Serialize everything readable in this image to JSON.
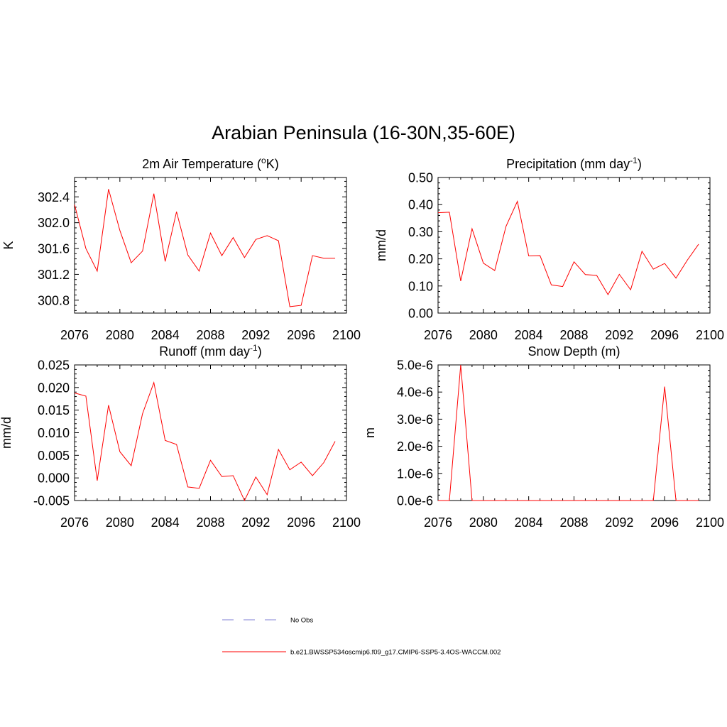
{
  "title": "Arabian Peninsula (16-30N,35-60E)",
  "colors": {
    "model": "#ff0000",
    "obs": "#9999dd",
    "axis": "#000000"
  },
  "legend": [
    {
      "label": "No Obs",
      "style": "dashed",
      "color": "#9999dd"
    },
    {
      "label": "b.e21.BWSSP534oscmip6.f09_g17.CMIP6-SSP5-3.4OS-WACCM.002",
      "style": "solid",
      "color": "#ff0000"
    }
  ],
  "chart_data": [
    {
      "type": "line",
      "title_main": "2m Air Temperature (",
      "title_sup": "o",
      "title_after": "K)",
      "ylabel": "K",
      "xlim": [
        2076,
        2100
      ],
      "ylim": [
        300.6,
        302.7
      ],
      "x_ticks": [
        2076,
        2080,
        2084,
        2088,
        2092,
        2096,
        2100
      ],
      "y_ticks": [
        "302.4",
        "302.0",
        "301.6",
        "301.2",
        "300.8"
      ],
      "y_tick_values": [
        302.4,
        302.0,
        301.6,
        301.2,
        300.8
      ],
      "x": [
        2076,
        2077,
        2078,
        2079,
        2080,
        2081,
        2082,
        2083,
        2084,
        2085,
        2086,
        2087,
        2088,
        2089,
        2090,
        2091,
        2092,
        2093,
        2094,
        2095,
        2096,
        2097,
        2098,
        2099
      ],
      "values": [
        302.28,
        301.6,
        301.25,
        302.52,
        301.88,
        301.38,
        301.56,
        302.45,
        301.4,
        302.17,
        301.5,
        301.25,
        301.84,
        301.49,
        301.77,
        301.46,
        301.74,
        301.8,
        301.72,
        300.7,
        300.72,
        301.49,
        301.45,
        301.45
      ]
    },
    {
      "type": "line",
      "title_main": "Precipitation (mm day",
      "title_sup": "-1",
      "title_after": ")",
      "ylabel": "mm/d",
      "xlim": [
        2076,
        2100
      ],
      "ylim": [
        0.0,
        0.5
      ],
      "x_ticks": [
        2076,
        2080,
        2084,
        2088,
        2092,
        2096,
        2100
      ],
      "y_ticks": [
        "0.50",
        "0.40",
        "0.30",
        "0.20",
        "0.10",
        "0.00"
      ],
      "y_tick_values": [
        0.5,
        0.4,
        0.3,
        0.2,
        0.1,
        0.0
      ],
      "x": [
        2076,
        2077,
        2078,
        2079,
        2080,
        2081,
        2082,
        2083,
        2084,
        2085,
        2086,
        2087,
        2088,
        2089,
        2090,
        2091,
        2092,
        2093,
        2094,
        2095,
        2096,
        2097,
        2098,
        2099
      ],
      "values": [
        0.37,
        0.372,
        0.118,
        0.311,
        0.184,
        0.157,
        0.32,
        0.412,
        0.211,
        0.212,
        0.104,
        0.098,
        0.189,
        0.142,
        0.139,
        0.068,
        0.143,
        0.086,
        0.228,
        0.162,
        0.183,
        0.129,
        0.195,
        0.254
      ]
    },
    {
      "type": "line",
      "title_main": "Runoff (mm day",
      "title_sup": "-1",
      "title_after": ")",
      "ylabel": "mm/d",
      "xlim": [
        2076,
        2100
      ],
      "ylim": [
        -0.005,
        0.025
      ],
      "x_ticks": [
        2076,
        2080,
        2084,
        2088,
        2092,
        2096,
        2100
      ],
      "y_ticks": [
        "0.025",
        "0.020",
        "0.015",
        "0.010",
        "0.005",
        "0.000",
        "-0.005"
      ],
      "y_tick_values": [
        0.025,
        0.02,
        0.015,
        0.01,
        0.005,
        0.0,
        -0.005
      ],
      "x": [
        2076,
        2077,
        2078,
        2079,
        2080,
        2081,
        2082,
        2083,
        2084,
        2085,
        2086,
        2087,
        2088,
        2089,
        2090,
        2091,
        2092,
        2093,
        2094,
        2095,
        2096,
        2097,
        2098,
        2099
      ],
      "values": [
        0.0188,
        0.0181,
        -0.0006,
        0.0161,
        0.0058,
        0.0027,
        0.0142,
        0.0211,
        0.0083,
        0.0074,
        -0.002,
        -0.0023,
        0.0039,
        0.0003,
        0.0005,
        -0.005,
        0.0002,
        -0.0037,
        0.0063,
        0.0018,
        0.0035,
        0.0005,
        0.0034,
        0.0081
      ]
    },
    {
      "type": "line",
      "title_main": "Snow Depth (m)",
      "title_sup": "",
      "title_after": "",
      "ylabel": "m",
      "xlim": [
        2076,
        2100
      ],
      "ylim": [
        0.0,
        5e-06
      ],
      "x_ticks": [
        2076,
        2080,
        2084,
        2088,
        2092,
        2096,
        2100
      ],
      "y_ticks": [
        "5.0e-6",
        "4.0e-6",
        "3.0e-6",
        "2.0e-6",
        "1.0e-6",
        "0.0e-6"
      ],
      "y_tick_values": [
        5e-06,
        4e-06,
        3e-06,
        2e-06,
        1e-06,
        0.0
      ],
      "x": [
        2076,
        2077,
        2078,
        2079,
        2080,
        2081,
        2082,
        2083,
        2084,
        2085,
        2086,
        2087,
        2088,
        2089,
        2090,
        2091,
        2092,
        2093,
        2094,
        2095,
        2096,
        2097,
        2098,
        2099
      ],
      "values": [
        0,
        0,
        5e-06,
        0,
        0,
        0,
        0,
        0,
        0,
        0,
        0,
        0,
        0,
        0,
        0,
        0,
        0,
        0,
        0,
        0,
        4.2e-06,
        0,
        0,
        0
      ]
    }
  ]
}
